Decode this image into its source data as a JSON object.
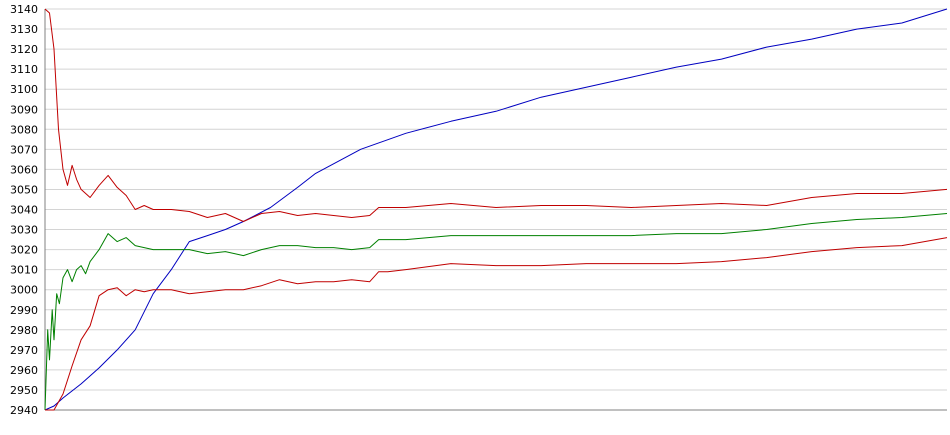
{
  "chart_data": {
    "type": "line",
    "title": "",
    "xlabel": "",
    "ylabel": "",
    "ylim": [
      2940,
      3140
    ],
    "xlim": [
      0,
      100
    ],
    "yticks": [
      2940,
      2950,
      2960,
      2970,
      2980,
      2990,
      3000,
      3010,
      3020,
      3030,
      3040,
      3050,
      3060,
      3070,
      3080,
      3090,
      3100,
      3110,
      3120,
      3130,
      3140
    ],
    "grid": true,
    "legend": "none",
    "gridColor": "#d4d4d4",
    "axisColor": "#808080",
    "series": [
      {
        "color": "#0000c0",
        "x": [
          0,
          1,
          2,
          4,
          6,
          8,
          10,
          12,
          14,
          16,
          18,
          20,
          22,
          25,
          28,
          30,
          35,
          40,
          45,
          50,
          55,
          60,
          65,
          70,
          75,
          80,
          85,
          90,
          95,
          100
        ],
        "values": [
          2940,
          2942,
          2946,
          2953,
          2961,
          2970,
          2980,
          2998,
          3010,
          3024,
          3027,
          3030,
          3034,
          3041,
          3051,
          3058,
          3070,
          3078,
          3084,
          3089,
          3096,
          3101,
          3106,
          3111,
          3115,
          3121,
          3125,
          3130,
          3133,
          3140
        ]
      },
      {
        "color": "#c00000",
        "x": [
          0,
          0.5,
          1,
          1.5,
          2,
          2.5,
          3,
          3.5,
          4,
          5,
          6,
          7,
          8,
          9,
          10,
          11,
          12,
          14,
          16,
          18,
          20,
          22,
          24,
          26,
          28,
          30,
          32,
          34,
          36,
          37,
          38,
          40,
          45,
          50,
          55,
          60,
          65,
          70,
          75,
          80,
          85,
          90,
          95,
          100
        ],
        "values": [
          3140,
          3138,
          3120,
          3080,
          3060,
          3052,
          3062,
          3055,
          3050,
          3046,
          3052,
          3057,
          3051,
          3047,
          3040,
          3042,
          3040,
          3040,
          3039,
          3036,
          3038,
          3034,
          3038,
          3039,
          3037,
          3038,
          3037,
          3036,
          3037,
          3041,
          3041,
          3041,
          3043,
          3041,
          3042,
          3042,
          3041,
          3042,
          3043,
          3042,
          3046,
          3048,
          3048,
          3050
        ]
      },
      {
        "color": "#008000",
        "x": [
          0,
          0.3,
          0.5,
          0.8,
          1,
          1.3,
          1.6,
          2,
          2.5,
          3,
          3.5,
          4,
          4.5,
          5,
          6,
          7,
          8,
          9,
          10,
          12,
          14,
          16,
          18,
          20,
          22,
          24,
          26,
          28,
          30,
          32,
          34,
          36,
          37,
          38,
          40,
          45,
          50,
          55,
          60,
          65,
          70,
          75,
          80,
          85,
          90,
          95,
          100
        ],
        "values": [
          2940,
          2980,
          2965,
          2990,
          2975,
          2998,
          2993,
          3006,
          3010,
          3004,
          3010,
          3012,
          3008,
          3014,
          3020,
          3028,
          3024,
          3026,
          3022,
          3020,
          3020,
          3020,
          3018,
          3019,
          3017,
          3020,
          3022,
          3022,
          3021,
          3021,
          3020,
          3021,
          3025,
          3025,
          3025,
          3027,
          3027,
          3027,
          3027,
          3027,
          3028,
          3028,
          3030,
          3033,
          3035,
          3036,
          3038
        ]
      },
      {
        "color": "#c00000",
        "x": [
          0,
          1,
          2,
          3,
          4,
          5,
          6,
          7,
          8,
          9,
          10,
          11,
          12,
          14,
          16,
          18,
          20,
          22,
          24,
          26,
          28,
          30,
          32,
          34,
          36,
          37,
          38,
          40,
          45,
          50,
          55,
          60,
          65,
          70,
          75,
          80,
          85,
          90,
          95,
          100
        ],
        "values": [
          2940,
          2940,
          2948,
          2962,
          2975,
          2982,
          2997,
          3000,
          3001,
          2997,
          3000,
          2999,
          3000,
          3000,
          2998,
          2999,
          3000,
          3000,
          3002,
          3005,
          3003,
          3004,
          3004,
          3005,
          3004,
          3009,
          3009,
          3010,
          3013,
          3012,
          3012,
          3013,
          3013,
          3013,
          3014,
          3016,
          3019,
          3021,
          3022,
          3026
        ]
      }
    ]
  }
}
